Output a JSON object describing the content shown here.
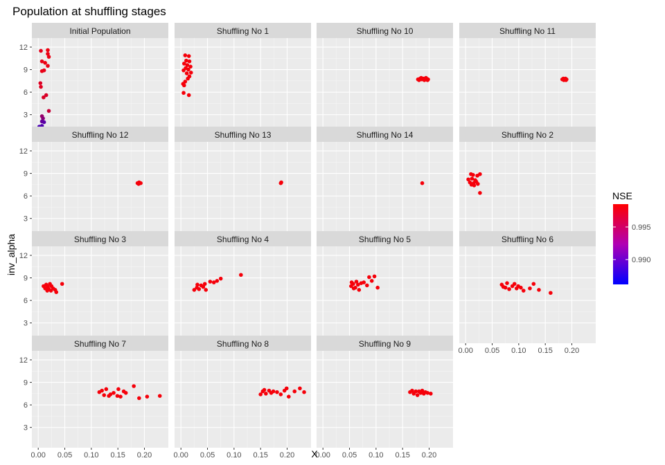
{
  "chart_data": {
    "type": "scatter",
    "title": "Population at shuffling stages",
    "xlabel": "X",
    "ylabel": "inv_alpha",
    "xlim": [
      -0.012,
      0.245
    ],
    "ylim": [
      0.3,
      13.2
    ],
    "x_ticks": [
      0.0,
      0.05,
      0.1,
      0.15,
      0.2
    ],
    "x_tick_labels": [
      "0.00",
      "0.05",
      "0.10",
      "0.15",
      "0.20"
    ],
    "y_ticks": [
      3,
      6,
      9,
      12
    ],
    "y_tick_labels": [
      "3",
      "6",
      "9",
      "12"
    ],
    "grid": true,
    "color": {
      "variable": "NSE",
      "range": [
        0.9862,
        0.9985
      ],
      "low_color": "#0000ff",
      "high_color": "#ff0000",
      "breaks": [
        0.99,
        0.995
      ],
      "break_labels": [
        "0.990",
        "0.995"
      ],
      "legend_position": "right"
    },
    "panels": [
      {
        "label": "Initial Population",
        "points": [
          [
            0.005,
            11.5,
            0.9972
          ],
          [
            0.018,
            11.6,
            0.9978
          ],
          [
            0.018,
            11.1,
            0.9975
          ],
          [
            0.02,
            10.7,
            0.9976
          ],
          [
            0.007,
            10.1,
            0.9974
          ],
          [
            0.013,
            9.9,
            0.9977
          ],
          [
            0.018,
            9.5,
            0.9975
          ],
          [
            0.007,
            8.8,
            0.9976
          ],
          [
            0.011,
            8.9,
            0.9973
          ],
          [
            0.004,
            7.2,
            0.9968
          ],
          [
            0.005,
            6.7,
            0.997
          ],
          [
            0.015,
            5.6,
            0.9966
          ],
          [
            0.01,
            5.3,
            0.9967
          ],
          [
            0.02,
            3.5,
            0.9958
          ],
          [
            0.007,
            2.8,
            0.9935
          ],
          [
            0.009,
            2.5,
            0.9928
          ],
          [
            0.007,
            2.1,
            0.991
          ],
          [
            0.011,
            2.0,
            0.9905
          ],
          [
            0.002,
            1.4,
            0.9898
          ],
          [
            0.007,
            1.5,
            0.99
          ],
          [
            0.012,
            0.8,
            0.9862
          ]
        ]
      },
      {
        "label": "Shuffling No 1",
        "points": [
          [
            0.008,
            10.9,
            0.998
          ],
          [
            0.015,
            10.8,
            0.998
          ],
          [
            0.01,
            10.2,
            0.998
          ],
          [
            0.016,
            10.1,
            0.998
          ],
          [
            0.006,
            9.8,
            0.998
          ],
          [
            0.012,
            9.6,
            0.998
          ],
          [
            0.018,
            9.4,
            0.998
          ],
          [
            0.009,
            9.2,
            0.998
          ],
          [
            0.014,
            9.0,
            0.998
          ],
          [
            0.005,
            8.9,
            0.998
          ],
          [
            0.019,
            8.6,
            0.998
          ],
          [
            0.011,
            8.5,
            0.998
          ],
          [
            0.016,
            8.1,
            0.998
          ],
          [
            0.013,
            7.8,
            0.998
          ],
          [
            0.008,
            7.4,
            0.998
          ],
          [
            0.004,
            7.1,
            0.998
          ],
          [
            0.006,
            6.9,
            0.998
          ],
          [
            0.005,
            5.9,
            0.998
          ],
          [
            0.015,
            5.6,
            0.998
          ]
        ]
      },
      {
        "label": "Shuffling No 10",
        "points": [
          [
            0.179,
            7.7,
            0.998
          ],
          [
            0.183,
            7.8,
            0.998
          ],
          [
            0.186,
            7.7,
            0.998
          ],
          [
            0.189,
            7.8,
            0.998
          ],
          [
            0.192,
            7.7,
            0.998
          ],
          [
            0.195,
            7.8,
            0.998
          ],
          [
            0.198,
            7.7,
            0.998
          ],
          [
            0.181,
            7.6,
            0.998
          ],
          [
            0.185,
            7.9,
            0.998
          ],
          [
            0.191,
            7.6,
            0.998
          ],
          [
            0.194,
            7.9,
            0.998
          ],
          [
            0.197,
            7.6,
            0.998
          ]
        ]
      },
      {
        "label": "Shuffling No 11",
        "points": [
          [
            0.182,
            7.7,
            0.998
          ],
          [
            0.184,
            7.8,
            0.998
          ],
          [
            0.186,
            7.7,
            0.998
          ],
          [
            0.188,
            7.8,
            0.998
          ],
          [
            0.19,
            7.7,
            0.998
          ],
          [
            0.185,
            7.6,
            0.998
          ],
          [
            0.189,
            7.6,
            0.998
          ]
        ]
      },
      {
        "label": "Shuffling No 12",
        "points": [
          [
            0.187,
            7.7,
            0.998
          ],
          [
            0.19,
            7.8,
            0.998
          ],
          [
            0.193,
            7.7,
            0.998
          ],
          [
            0.189,
            7.6,
            0.998
          ]
        ]
      },
      {
        "label": "Shuffling No 13",
        "points": [
          [
            0.188,
            7.7,
            0.998
          ],
          [
            0.189,
            7.8,
            0.998
          ]
        ]
      },
      {
        "label": "Shuffling No 14",
        "points": [
          [
            0.187,
            7.7,
            0.998
          ]
        ]
      },
      {
        "label": "Shuffling No 2",
        "points": [
          [
            0.01,
            8.9,
            0.998
          ],
          [
            0.014,
            8.8,
            0.998
          ],
          [
            0.022,
            8.7,
            0.998
          ],
          [
            0.027,
            8.9,
            0.998
          ],
          [
            0.005,
            8.2,
            0.998
          ],
          [
            0.012,
            8.3,
            0.998
          ],
          [
            0.018,
            8.1,
            0.998
          ],
          [
            0.008,
            7.8,
            0.998
          ],
          [
            0.015,
            7.7,
            0.998
          ],
          [
            0.02,
            7.9,
            0.998
          ],
          [
            0.011,
            7.5,
            0.998
          ],
          [
            0.016,
            7.4,
            0.998
          ],
          [
            0.023,
            7.6,
            0.998
          ],
          [
            0.027,
            6.4,
            0.998
          ]
        ]
      },
      {
        "label": "Shuffling No 3",
        "points": [
          [
            0.015,
            8.1,
            0.998
          ],
          [
            0.022,
            8.2,
            0.998
          ],
          [
            0.01,
            7.9,
            0.998
          ],
          [
            0.018,
            7.8,
            0.998
          ],
          [
            0.025,
            7.9,
            0.998
          ],
          [
            0.013,
            7.6,
            0.998
          ],
          [
            0.02,
            7.5,
            0.998
          ],
          [
            0.028,
            7.6,
            0.998
          ],
          [
            0.017,
            7.3,
            0.998
          ],
          [
            0.024,
            7.3,
            0.998
          ],
          [
            0.032,
            7.4,
            0.998
          ],
          [
            0.034,
            7.1,
            0.998
          ],
          [
            0.045,
            8.2,
            0.998
          ]
        ]
      },
      {
        "label": "Shuffling No 4",
        "points": [
          [
            0.025,
            7.4,
            0.998
          ],
          [
            0.03,
            7.7,
            0.998
          ],
          [
            0.034,
            7.5,
            0.998
          ],
          [
            0.038,
            8.0,
            0.998
          ],
          [
            0.042,
            7.8,
            0.998
          ],
          [
            0.047,
            7.4,
            0.998
          ],
          [
            0.031,
            8.1,
            0.998
          ],
          [
            0.045,
            8.2,
            0.998
          ],
          [
            0.055,
            8.5,
            0.998
          ],
          [
            0.062,
            8.4,
            0.998
          ],
          [
            0.068,
            8.6,
            0.998
          ],
          [
            0.075,
            8.9,
            0.998
          ],
          [
            0.113,
            9.4,
            0.998
          ]
        ]
      },
      {
        "label": "Shuffling No 5",
        "points": [
          [
            0.053,
            7.9,
            0.998
          ],
          [
            0.057,
            8.2,
            0.998
          ],
          [
            0.061,
            7.7,
            0.998
          ],
          [
            0.063,
            8.5,
            0.998
          ],
          [
            0.066,
            8.1,
            0.998
          ],
          [
            0.068,
            7.4,
            0.998
          ],
          [
            0.058,
            7.6,
            0.998
          ],
          [
            0.072,
            8.3,
            0.998
          ],
          [
            0.077,
            8.4,
            0.998
          ],
          [
            0.083,
            8.0,
            0.998
          ],
          [
            0.087,
            9.1,
            0.998
          ],
          [
            0.092,
            8.6,
            0.998
          ],
          [
            0.097,
            9.2,
            0.998
          ],
          [
            0.103,
            7.7,
            0.998
          ],
          [
            0.054,
            8.4,
            0.998
          ]
        ]
      },
      {
        "label": "Shuffling No 6",
        "points": [
          [
            0.068,
            8.1,
            0.998
          ],
          [
            0.071,
            7.8,
            0.998
          ],
          [
            0.075,
            7.7,
            0.998
          ],
          [
            0.078,
            8.3,
            0.998
          ],
          [
            0.082,
            7.5,
            0.998
          ],
          [
            0.088,
            7.9,
            0.998
          ],
          [
            0.092,
            8.2,
            0.998
          ],
          [
            0.096,
            7.6,
            0.998
          ],
          [
            0.099,
            7.9,
            0.998
          ],
          [
            0.104,
            7.7,
            0.998
          ],
          [
            0.109,
            7.3,
            0.998
          ],
          [
            0.121,
            7.6,
            0.998
          ],
          [
            0.128,
            8.2,
            0.998
          ],
          [
            0.138,
            7.4,
            0.998
          ],
          [
            0.16,
            7.0,
            0.998
          ]
        ]
      },
      {
        "label": "Shuffling No 7",
        "points": [
          [
            0.115,
            7.7,
            0.998
          ],
          [
            0.12,
            7.9,
            0.998
          ],
          [
            0.124,
            7.3,
            0.998
          ],
          [
            0.128,
            8.1,
            0.998
          ],
          [
            0.133,
            7.2,
            0.998
          ],
          [
            0.136,
            7.4,
            0.998
          ],
          [
            0.142,
            7.6,
            0.998
          ],
          [
            0.149,
            7.2,
            0.998
          ],
          [
            0.151,
            8.1,
            0.998
          ],
          [
            0.155,
            7.1,
            0.998
          ],
          [
            0.161,
            7.8,
            0.998
          ],
          [
            0.165,
            7.6,
            0.998
          ],
          [
            0.18,
            8.5,
            0.998
          ],
          [
            0.19,
            6.9,
            0.998
          ],
          [
            0.205,
            7.1,
            0.998
          ],
          [
            0.229,
            7.2,
            0.998
          ]
        ]
      },
      {
        "label": "Shuffling No 8",
        "points": [
          [
            0.15,
            7.4,
            0.998
          ],
          [
            0.154,
            7.8,
            0.998
          ],
          [
            0.157,
            8.0,
            0.998
          ],
          [
            0.16,
            7.5,
            0.998
          ],
          [
            0.166,
            7.9,
            0.998
          ],
          [
            0.17,
            7.6,
            0.998
          ],
          [
            0.174,
            7.8,
            0.998
          ],
          [
            0.181,
            7.7,
            0.998
          ],
          [
            0.188,
            7.4,
            0.998
          ],
          [
            0.195,
            7.9,
            0.998
          ],
          [
            0.199,
            8.2,
            0.998
          ],
          [
            0.203,
            7.1,
            0.998
          ],
          [
            0.214,
            7.8,
            0.998
          ],
          [
            0.224,
            8.2,
            0.998
          ],
          [
            0.232,
            7.7,
            0.998
          ]
        ]
      },
      {
        "label": "Shuffling No 9",
        "points": [
          [
            0.164,
            7.7,
            0.998
          ],
          [
            0.168,
            7.9,
            0.998
          ],
          [
            0.171,
            7.5,
            0.998
          ],
          [
            0.175,
            7.8,
            0.998
          ],
          [
            0.178,
            7.3,
            0.998
          ],
          [
            0.181,
            7.8,
            0.998
          ],
          [
            0.184,
            7.6,
            0.998
          ],
          [
            0.187,
            7.9,
            0.998
          ],
          [
            0.19,
            7.5,
            0.998
          ],
          [
            0.193,
            7.7,
            0.998
          ],
          [
            0.197,
            7.6,
            0.998
          ],
          [
            0.203,
            7.5,
            0.998
          ]
        ]
      }
    ]
  }
}
